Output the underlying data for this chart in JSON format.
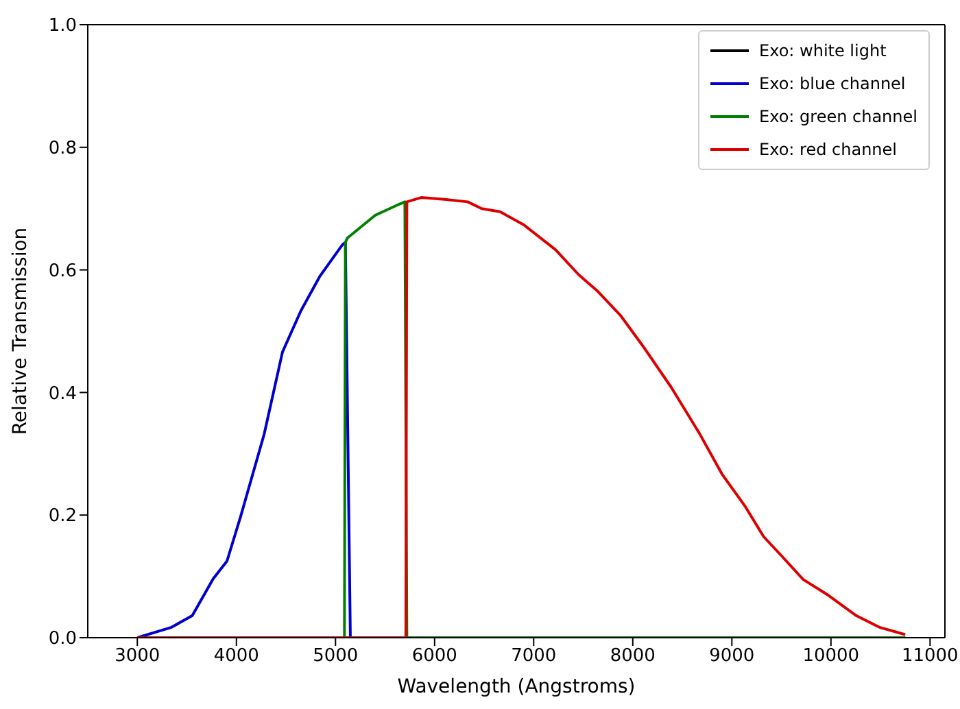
{
  "chart_data": {
    "type": "line",
    "xlabel": "Wavelength (Angstroms)",
    "ylabel": "Relative Transmission",
    "xlim": [
      2500,
      11150
    ],
    "xticks": [
      3000,
      4000,
      5000,
      6000,
      7000,
      8000,
      9000,
      10000,
      11000
    ],
    "ylim": [
      0,
      1
    ],
    "yticks": [
      {
        "value": 0,
        "label": "0.0"
      },
      0.2,
      0.4,
      0.6,
      0.8,
      {
        "value": 1,
        "label": "1.0"
      }
    ],
    "grid": false,
    "legend": "top right",
    "marker": "none",
    "line_style": "solid",
    "series": [
      {
        "name": "Exo: white light",
        "color": "#000000"
      },
      {
        "name": "Exo: blue channel",
        "color": "#0000cc",
        "x": [
          3000,
          3345,
          3555,
          3765,
          3905,
          4045,
          4280,
          4465,
          4650,
          4840,
          5070,
          5100,
          5150,
          10750
        ],
        "values": [
          0,
          0.017,
          0.036,
          0.096,
          0.125,
          0.199,
          0.332,
          0.466,
          0.533,
          0.589,
          0.641,
          0.645,
          0,
          0
        ]
      },
      {
        "name": "Exo: green channel",
        "color": "#008000",
        "x": [
          3000,
          5090,
          5100,
          5120,
          5400,
          5655,
          5700,
          5720,
          10750
        ],
        "values": [
          0,
          0,
          0.645,
          0.652,
          0.689,
          0.708,
          0.711,
          0,
          0
        ]
      },
      {
        "name": "Exo: red channel",
        "color": "#dd0000",
        "x": [
          3000,
          5710,
          5720,
          5865,
          6100,
          6335,
          6475,
          6660,
          6895,
          7220,
          7455,
          7640,
          7875,
          8110,
          8390,
          8670,
          8900,
          9135,
          9320,
          9510,
          9720,
          9975,
          10255,
          10490,
          10750
        ],
        "values": [
          0,
          0,
          0.711,
          0.718,
          0.715,
          0.711,
          0.7,
          0.695,
          0.674,
          0.633,
          0.592,
          0.566,
          0.526,
          0.474,
          0.408,
          0.334,
          0.267,
          0.214,
          0.165,
          0.132,
          0.095,
          0.069,
          0.036,
          0.017,
          0.005
        ]
      }
    ]
  }
}
